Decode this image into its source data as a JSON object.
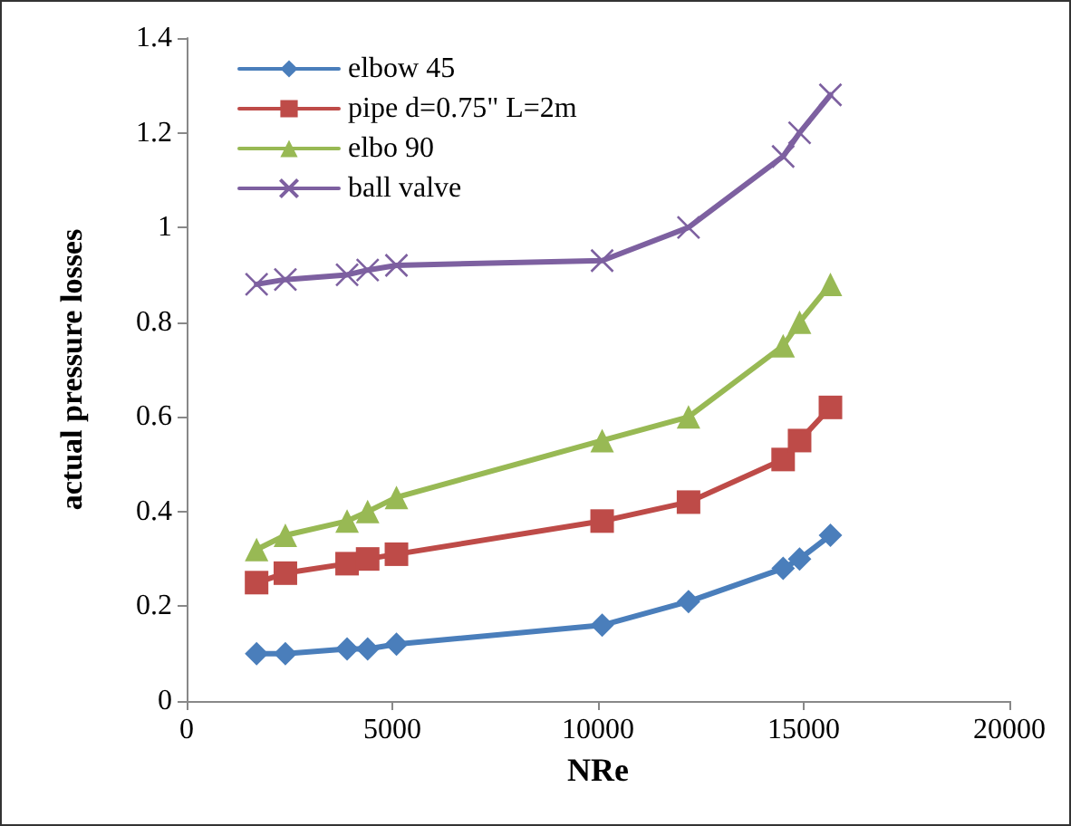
{
  "chart_data": {
    "type": "line",
    "xlabel": "NRe",
    "ylabel": "actual pressure losses",
    "x": [
      1700,
      2400,
      3900,
      4400,
      5100,
      10100,
      12200,
      14500,
      14900,
      15650
    ],
    "series": [
      {
        "name": "elbow 45",
        "color": "#4a7ebb",
        "marker": "diamond",
        "values": [
          0.1,
          0.1,
          0.11,
          0.11,
          0.12,
          0.16,
          0.21,
          0.28,
          0.3,
          0.35
        ]
      },
      {
        "name": "pipe d=0.75\" L=2m",
        "color": "#be4b48",
        "marker": "square",
        "values": [
          0.25,
          0.27,
          0.29,
          0.3,
          0.31,
          0.38,
          0.42,
          0.51,
          0.55,
          0.62
        ]
      },
      {
        "name": "elbo 90",
        "color": "#98b954",
        "marker": "triangle",
        "values": [
          0.32,
          0.35,
          0.38,
          0.4,
          0.43,
          0.55,
          0.6,
          0.75,
          0.8,
          0.88
        ]
      },
      {
        "name": "ball valve",
        "color": "#7d60a0",
        "marker": "cross",
        "values": [
          0.88,
          0.89,
          0.9,
          0.91,
          0.92,
          0.93,
          1.0,
          1.15,
          1.2,
          1.28
        ]
      }
    ],
    "xlim": [
      0,
      20000
    ],
    "xticks": [
      0,
      5000,
      10000,
      15000,
      20000
    ],
    "ylim": [
      0,
      1.4
    ],
    "yticks": [
      0,
      0.2,
      0.4,
      0.6,
      0.8,
      1,
      1.2,
      1.4
    ],
    "grid": false,
    "legend": "top left"
  }
}
